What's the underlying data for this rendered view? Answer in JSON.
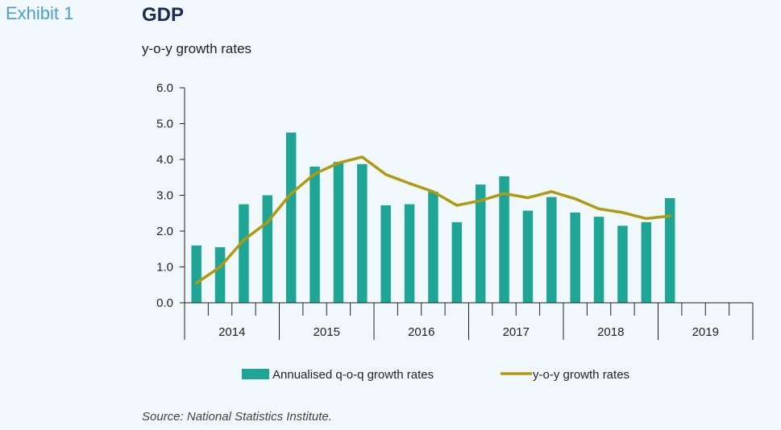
{
  "header": {
    "exhibit": "Exhibit 1",
    "title": "GDP",
    "subtitle": "y-o-y growth rates"
  },
  "footer": {
    "source": "Source: National Statistics Institute."
  },
  "colors": {
    "bar": "#1fa595",
    "line": "#b09a12",
    "axis": "#222222",
    "background": "#f1f8fc"
  },
  "chart_data": {
    "type": "bar",
    "title": "GDP",
    "subtitle": "y-o-y growth rates",
    "xlabel": "",
    "ylabel": "",
    "ylim": [
      0,
      6
    ],
    "yticks": [
      "0.0",
      "1.0",
      "2.0",
      "3.0",
      "4.0",
      "5.0",
      "6.0"
    ],
    "grid": false,
    "legend_position": "bottom",
    "years": [
      "2014",
      "2015",
      "2016",
      "2017",
      "2018",
      "2019"
    ],
    "quarters_per_year": 4,
    "series": [
      {
        "name": "Annualised q-o-q growth rates",
        "type": "bar",
        "values": [
          1.6,
          1.55,
          2.75,
          3.0,
          4.75,
          3.8,
          3.93,
          3.87,
          2.72,
          2.75,
          3.1,
          2.25,
          3.3,
          3.53,
          2.57,
          2.95,
          2.52,
          2.4,
          2.15,
          2.25,
          2.92
        ]
      },
      {
        "name": "y-o-y growth rates",
        "type": "line",
        "values": [
          0.55,
          1.0,
          1.75,
          2.25,
          3.05,
          3.6,
          3.9,
          4.07,
          3.58,
          3.33,
          3.1,
          2.72,
          2.85,
          3.05,
          2.93,
          3.1,
          2.9,
          2.62,
          2.52,
          2.35,
          2.42
        ]
      }
    ]
  }
}
